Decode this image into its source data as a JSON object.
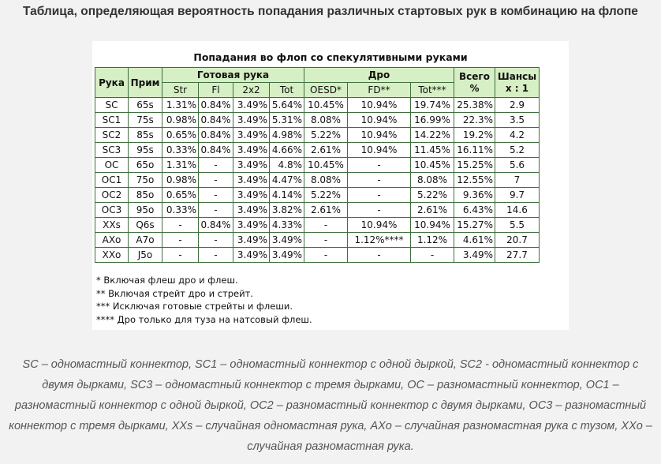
{
  "heading": "Таблица, определяющая вероятность попадания различных стартовых рук в комбинацию на флопе",
  "table": {
    "caption": "Попадания во флоп со спекулятивными руками",
    "headers": {
      "hand": "Рука",
      "example": "Прим",
      "made_group": "Готовая рука",
      "draw_group": "Дро",
      "total_line1": "Всего",
      "total_line2": "%",
      "odds_line1": "Шансы",
      "odds_line2": "x : 1",
      "sub": [
        "Str",
        "Fl",
        "2x2",
        "Tot",
        "OESD*",
        "FD**",
        "Tot***"
      ]
    },
    "rows": [
      [
        "SC",
        "65s",
        "1.31%",
        "0.84%",
        "3.49%",
        "5.64%",
        "10.45%",
        "10.94%",
        "19.74%",
        "25.38%",
        "2.9"
      ],
      [
        "SC1",
        "75s",
        "0.98%",
        "0.84%",
        "3.49%",
        "5.31%",
        "8.08%",
        "10.94%",
        "16.99%",
        "22.3%",
        "3.5"
      ],
      [
        "SC2",
        "85s",
        "0.65%",
        "0.84%",
        "3.49%",
        "4.98%",
        "5.22%",
        "10.94%",
        "14.22%",
        "19.2%",
        "4.2"
      ],
      [
        "SC3",
        "95s",
        "0.33%",
        "0.84%",
        "3.49%",
        "4.66%",
        "2.61%",
        "10.94%",
        "11.45%",
        "16.11%",
        "5.2"
      ],
      [
        "OC",
        "65o",
        "1.31%",
        "-",
        "3.49%",
        "4.8%",
        "10.45%",
        "-",
        "10.45%",
        "15.25%",
        "5.6"
      ],
      [
        "OC1",
        "75o",
        "0.98%",
        "-",
        "3.49%",
        "4.47%",
        "8.08%",
        "-",
        "8.08%",
        "12.55%",
        "7"
      ],
      [
        "OC2",
        "85o",
        "0.65%",
        "-",
        "3.49%",
        "4.14%",
        "5.22%",
        "-",
        "5.22%",
        "9.36%",
        "9.7"
      ],
      [
        "OC3",
        "95o",
        "0.33%",
        "-",
        "3.49%",
        "3.82%",
        "2.61%",
        "-",
        "2.61%",
        "6.43%",
        "14.6"
      ],
      [
        "XXs",
        "Q6s",
        "-",
        "0.84%",
        "3.49%",
        "4.33%",
        "-",
        "10.94%",
        "10.94%",
        "15.27%",
        "5.5"
      ],
      [
        "AXo",
        "A7o",
        "-",
        "-",
        "3.49%",
        "3.49%",
        "-",
        "1.12%****",
        "1.12%",
        "4.61%",
        "20.7"
      ],
      [
        "XXo",
        "J5o",
        "-",
        "-",
        "3.49%",
        "3.49%",
        "-",
        "-",
        "-",
        "3.49%",
        "27.7"
      ]
    ],
    "notes": [
      "* Включая флеш дро и флеш.",
      "** Включая стрейт дро и стрейт.",
      "*** Исключая готовые стрейты и флеши.",
      "**** Дро только для туза на натсовый флеш."
    ]
  },
  "legend": "SC – одномастный коннектор, SC1 – одномастный коннектор с одной дыркой, SC2 - одномастный коннектор с двумя дырками, SC3 – одномастный коннектор с тремя дырками, OC – разномастный коннектор, OC1 – разномастный коннектор с одной дыркой, OC2 – разномастный коннектор с двумя дырками, OC3 – разномастный коннектор с тремя дырками, XXs – случайная одномастная рука, AXo – случайная разномастная рука с тузом, XXo – случайная разномастная рука."
}
